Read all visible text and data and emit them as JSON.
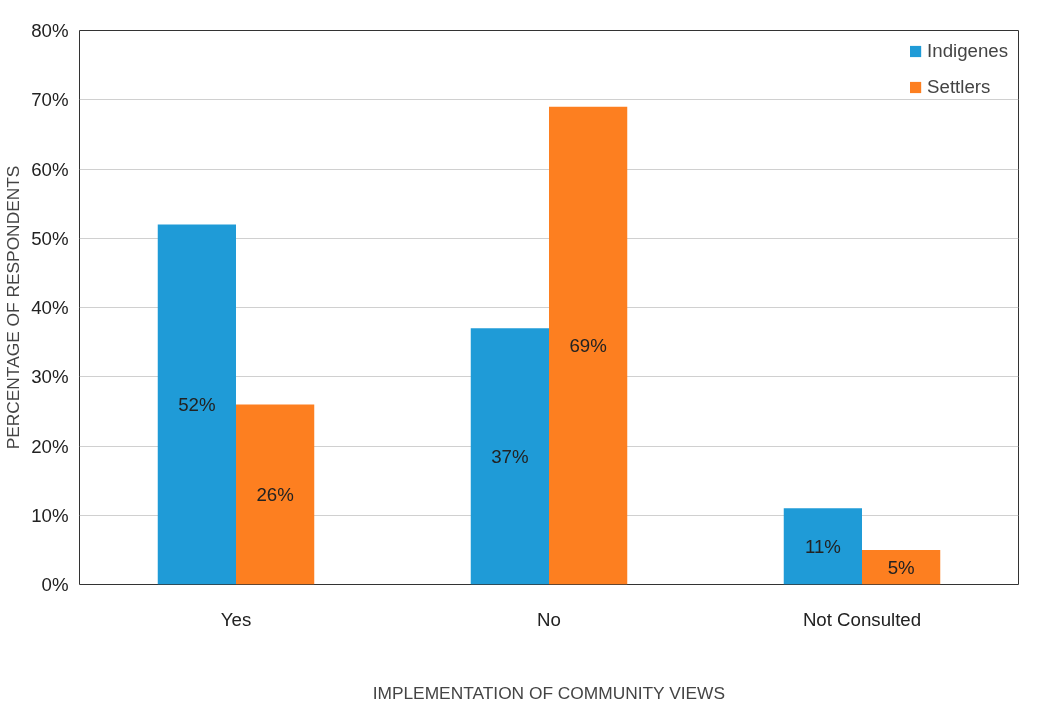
{
  "chart_data": {
    "type": "bar",
    "xlabel": "IMPLEMENTATION OF COMMUNITY VIEWS",
    "ylabel": "PERCENTAGE OF RESPONDENTS",
    "categories": [
      "Yes",
      "No",
      "Not Consulted"
    ],
    "series": [
      {
        "name": "Indigenes",
        "color": "#1f9bd7",
        "values": [
          52,
          37,
          11
        ],
        "value_labels": [
          "52%",
          "37%",
          "11%"
        ]
      },
      {
        "name": "Settlers",
        "color": "#fd7f20",
        "values": [
          26,
          69,
          5
        ],
        "value_labels": [
          "26%",
          "69%",
          "5%"
        ]
      }
    ],
    "ylim": [
      0,
      80
    ],
    "yticks": [
      {
        "value": 0,
        "label": "0%"
      },
      {
        "value": 10,
        "label": "10%"
      },
      {
        "value": 20,
        "label": "20%"
      },
      {
        "value": 30,
        "label": "30%"
      },
      {
        "value": 40,
        "label": "40%"
      },
      {
        "value": 50,
        "label": "50%"
      },
      {
        "value": 60,
        "label": "60%"
      },
      {
        "value": 70,
        "label": "70%"
      },
      {
        "value": 80,
        "label": "80%"
      }
    ],
    "grid": "y",
    "legend": "top right"
  }
}
